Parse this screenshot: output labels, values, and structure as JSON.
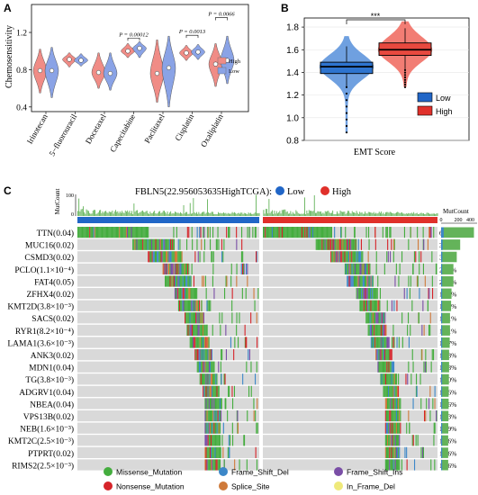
{
  "panel_labels": {
    "a": "A",
    "b": "B",
    "c": "C"
  },
  "colors": {
    "high": "#f08c86",
    "low": "#8aa3e6",
    "high_strong": "#e0302a",
    "low_strong": "#2166c7",
    "missense": "#44ad3e",
    "frame_shift_del": "#3c87c8",
    "frame_shift_ins": "#7a4ea6",
    "nonsense": "#d6242a",
    "splice_site": "#cf7a3a",
    "in_frame_del": "#efe97a",
    "mutcount_bar": "#64b35a",
    "cell_bg": "#d9d9d9"
  },
  "chart_data": [
    {
      "id": "A",
      "type": "violin",
      "title": "",
      "xlabel": "",
      "ylabel": "Chemosensitivity",
      "ylim": [
        0.35,
        1.5
      ],
      "yticks": [
        "0.4",
        "0.8",
        "1.2"
      ],
      "categories": [
        "Irinotecan",
        "5−fluorouracil",
        "Docetaxel",
        "Capecitabine",
        "Paclitaxel",
        "Cisplatin",
        "Oxaliplatin"
      ],
      "legend": {
        "position": "right",
        "items": [
          "High",
          "Low"
        ]
      },
      "series": [
        {
          "name": "High",
          "median": [
            0.79,
            0.91,
            0.77,
            1.0,
            0.76,
            0.98,
            0.86
          ],
          "min": [
            0.55,
            0.83,
            0.6,
            0.93,
            0.45,
            0.9,
            0.62
          ],
          "max": [
            1.02,
            0.98,
            0.98,
            1.08,
            1.12,
            1.06,
            1.08
          ]
        },
        {
          "name": "Low",
          "median": [
            0.79,
            0.9,
            0.76,
            1.03,
            0.82,
            0.99,
            0.9
          ],
          "min": [
            0.5,
            0.84,
            0.58,
            0.93,
            0.4,
            0.91,
            0.65
          ],
          "max": [
            1.04,
            0.97,
            0.98,
            1.1,
            1.16,
            1.07,
            1.16
          ]
        }
      ],
      "annotations": [
        {
          "category": "Capecitabine",
          "text": "P = 0.00012",
          "y": 1.14
        },
        {
          "category": "Cisplatin",
          "text": "P = 0.0013",
          "y": 1.17
        },
        {
          "category": "Oxaliplatin",
          "text": "P = 0.0066",
          "y": 1.36
        }
      ]
    },
    {
      "id": "B",
      "type": "violin-box",
      "title": "",
      "xlabel": "EMT Score",
      "ylabel": "",
      "ylim": [
        0.8,
        1.88
      ],
      "yticks": [
        "0.8",
        "1.0",
        "1.2",
        "1.4",
        "1.6",
        "1.8"
      ],
      "legend": {
        "position": "bottom-right",
        "items": [
          "Low",
          "High"
        ]
      },
      "significance": "***",
      "series": [
        {
          "name": "Low",
          "median": 1.45,
          "q1": 1.39,
          "q3": 1.49,
          "whisker_low": 1.27,
          "whisker_high": 1.63,
          "min": 0.87,
          "max": 1.72
        },
        {
          "name": "High",
          "median": 1.6,
          "q1": 1.55,
          "q3": 1.66,
          "whisker_low": 1.42,
          "whisker_high": 1.79,
          "min": 1.27,
          "max": 1.85
        }
      ]
    },
    {
      "id": "C",
      "type": "heatmap",
      "title": "FBLN5(22.956053635HighTCGA):",
      "groups": [
        "Low",
        "High"
      ],
      "top_label": "MutCount",
      "top_ticks": [
        "0",
        "100"
      ],
      "right_label": "MutCount",
      "right_ticks": [
        "0",
        "200",
        "400"
      ],
      "genes": [
        {
          "name": "TTN(0.04)",
          "pct": "63.1%",
          "count": 395
        },
        {
          "name": "MUC16(0.02)",
          "pct": "36.6%",
          "count": 229
        },
        {
          "name": "CSMD3(0.02)",
          "pct": "30.0%",
          "count": 188
        },
        {
          "name": "PCLO(1.1×10⁻⁴)",
          "pct": "23.7%",
          "count": 148
        },
        {
          "name": "FAT4(0.05)",
          "pct": "23.7%",
          "count": 148
        },
        {
          "name": "ZFHX4(0.02)",
          "pct": "19.9%",
          "count": 125
        },
        {
          "name": "KMT2D(3.8×10⁻³)",
          "pct": "19.2%",
          "count": 120
        },
        {
          "name": "SACS(0.02)",
          "pct": "17.1%",
          "count": 107
        },
        {
          "name": "RYR1(8.2×10⁻⁴)",
          "pct": "17.1%",
          "count": 107
        },
        {
          "name": "LAMA1(3.6×10⁻³)",
          "pct": "16.7%",
          "count": 104
        },
        {
          "name": "ANK3(0.02)",
          "pct": "15.3%",
          "count": 96
        },
        {
          "name": "MDN1(0.04)",
          "pct": "15.3%",
          "count": 96
        },
        {
          "name": "TG(3.8×10⁻³)",
          "pct": "15.0%",
          "count": 94
        },
        {
          "name": "ADGRV1(0.04)",
          "pct": "14.6%",
          "count": 91
        },
        {
          "name": "NBEA(0.04)",
          "pct": "14.6%",
          "count": 91
        },
        {
          "name": "VPS13B(0.02)",
          "pct": "14.3%",
          "count": 89
        },
        {
          "name": "NEB(1.6×10⁻³)",
          "pct": "13.9%",
          "count": 87
        },
        {
          "name": "KMT2C(2.5×10⁻³)",
          "pct": "13.6%",
          "count": 85
        },
        {
          "name": "PTPRT(0.02)",
          "pct": "13.6%",
          "count": 85
        },
        {
          "name": "RIMS2(2.5×10⁻³)",
          "pct": "13.6%",
          "count": 85
        }
      ],
      "mutation_legend": [
        "Missense_Mutation",
        "Frame_Shift_Del",
        "Frame_Shift_Ins",
        "Nonsense_Mutation",
        "Splice_Site",
        "In_Frame_Del"
      ]
    }
  ]
}
